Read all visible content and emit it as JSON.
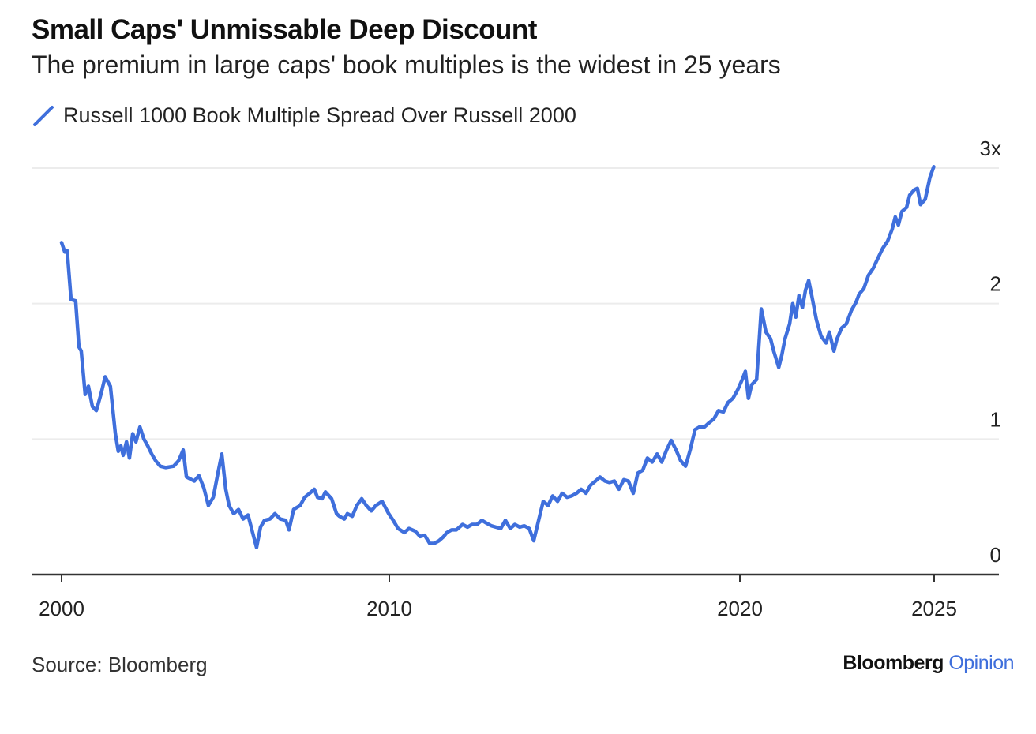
{
  "chart_data": {
    "type": "line",
    "title": "Small Caps' Unmissable Deep Discount",
    "subtitle": "The premium in large caps' book multiples is the widest in 25 years",
    "xlabel": "",
    "ylabel": "",
    "ylim": [
      0,
      3
    ],
    "yticks": [
      0,
      1,
      2,
      3
    ],
    "ytick_labels": [
      "0",
      "1",
      "2",
      "3x"
    ],
    "xticks": [
      2000,
      2010,
      2020,
      2025
    ],
    "xtick_labels": [
      "2000",
      "2010",
      "2020",
      "2025"
    ],
    "grid": true,
    "legend_position": "top-left",
    "series": [
      {
        "name": "Russell 1000 Book Multiple Spread Over Russell 2000",
        "color": "#3f6fdc",
        "x": [
          2000.0,
          2000.1,
          2000.17,
          2000.29,
          2000.43,
          2000.53,
          2000.6,
          2000.72,
          2000.82,
          2000.94,
          2001.06,
          2001.2,
          2001.33,
          2001.49,
          2001.64,
          2001.73,
          2001.81,
          2001.88,
          2001.98,
          2002.07,
          2002.17,
          2002.27,
          2002.39,
          2002.51,
          2002.63,
          2002.75,
          2002.87,
          2003.01,
          2003.18,
          2003.42,
          2003.57,
          2003.71,
          2003.81,
          2004.05,
          2004.19,
          2004.34,
          2004.48,
          2004.63,
          2004.77,
          2004.89,
          2005.01,
          2005.11,
          2005.25,
          2005.4,
          2005.54,
          2005.69,
          2005.83,
          2005.95,
          2006.07,
          2006.19,
          2006.36,
          2006.51,
          2006.67,
          2006.84,
          2006.94,
          2007.08,
          2007.28,
          2007.42,
          2007.57,
          2007.71,
          2007.81,
          2007.95,
          2008.05,
          2008.24,
          2008.39,
          2008.48,
          2008.63,
          2008.72,
          2008.87,
          2009.01,
          2009.16,
          2009.3,
          2009.45,
          2009.59,
          2009.78,
          2009.98,
          2010.11,
          2010.25,
          2010.43,
          2010.56,
          2010.74,
          2010.88,
          2011.01,
          2011.15,
          2011.28,
          2011.42,
          2011.55,
          2011.64,
          2011.78,
          2011.91,
          2012.09,
          2012.23,
          2012.36,
          2012.5,
          2012.64,
          2012.77,
          2012.91,
          2013.04,
          2013.18,
          2013.31,
          2013.45,
          2013.58,
          2013.72,
          2013.85,
          2013.99,
          2014.12,
          2014.26,
          2014.39,
          2014.53,
          2014.66,
          2014.8,
          2014.93,
          2015.07,
          2015.2,
          2015.34,
          2015.47,
          2015.61,
          2015.74,
          2015.88,
          2016.01,
          2016.15,
          2016.28,
          2016.42,
          2016.55,
          2016.69,
          2016.82,
          2016.96,
          2017.09,
          2017.23,
          2017.36,
          2017.5,
          2017.64,
          2017.77,
          2017.91,
          2018.04,
          2018.18,
          2018.31,
          2018.45,
          2018.58,
          2018.72,
          2018.85,
          2018.99,
          2019.12,
          2019.26,
          2019.39,
          2019.53,
          2019.66,
          2019.8,
          2019.93,
          2020.06,
          2020.14,
          2020.22,
          2020.3,
          2020.43,
          2020.55,
          2020.67,
          2020.79,
          2020.87,
          2021.0,
          2021.08,
          2021.16,
          2021.28,
          2021.36,
          2021.44,
          2021.52,
          2021.61,
          2021.69,
          2021.77,
          2021.85,
          2021.97,
          2022.09,
          2022.22,
          2022.3,
          2022.42,
          2022.5,
          2022.62,
          2022.74,
          2022.87,
          2022.99,
          2023.07,
          2023.19,
          2023.31,
          2023.43,
          2023.56,
          2023.68,
          2023.8,
          2023.92,
          2024.0,
          2024.08,
          2024.17,
          2024.29,
          2024.37,
          2024.49,
          2024.57,
          2024.65,
          2024.77,
          2024.89,
          2024.99
        ],
        "y": [
          2.45,
          2.38,
          2.39,
          2.03,
          2.02,
          1.68,
          1.65,
          1.33,
          1.39,
          1.24,
          1.21,
          1.33,
          1.46,
          1.39,
          1.04,
          0.91,
          0.95,
          0.88,
          0.98,
          0.86,
          1.04,
          0.98,
          1.09,
          1.0,
          0.95,
          0.89,
          0.84,
          0.8,
          0.79,
          0.8,
          0.84,
          0.92,
          0.72,
          0.69,
          0.73,
          0.64,
          0.51,
          0.57,
          0.75,
          0.89,
          0.63,
          0.51,
          0.45,
          0.48,
          0.41,
          0.44,
          0.31,
          0.2,
          0.35,
          0.4,
          0.41,
          0.45,
          0.41,
          0.4,
          0.33,
          0.48,
          0.51,
          0.57,
          0.6,
          0.63,
          0.57,
          0.56,
          0.61,
          0.56,
          0.45,
          0.43,
          0.41,
          0.45,
          0.43,
          0.51,
          0.56,
          0.51,
          0.47,
          0.51,
          0.54,
          0.45,
          0.4,
          0.34,
          0.31,
          0.34,
          0.32,
          0.28,
          0.29,
          0.23,
          0.23,
          0.25,
          0.28,
          0.31,
          0.33,
          0.33,
          0.37,
          0.35,
          0.37,
          0.37,
          0.4,
          0.38,
          0.36,
          0.35,
          0.34,
          0.4,
          0.34,
          0.37,
          0.35,
          0.36,
          0.34,
          0.25,
          0.4,
          0.54,
          0.51,
          0.58,
          0.54,
          0.6,
          0.57,
          0.58,
          0.6,
          0.63,
          0.6,
          0.66,
          0.69,
          0.72,
          0.69,
          0.68,
          0.69,
          0.63,
          0.7,
          0.69,
          0.6,
          0.75,
          0.77,
          0.86,
          0.83,
          0.89,
          0.83,
          0.92,
          0.99,
          0.92,
          0.84,
          0.8,
          0.92,
          1.07,
          1.09,
          1.09,
          1.12,
          1.15,
          1.21,
          1.2,
          1.27,
          1.3,
          1.36,
          1.44,
          1.5,
          1.3,
          1.4,
          1.44,
          1.96,
          1.79,
          1.74,
          1.65,
          1.53,
          1.62,
          1.74,
          1.85,
          2.0,
          1.9,
          2.06,
          1.97,
          2.1,
          2.17,
          2.06,
          1.88,
          1.76,
          1.71,
          1.79,
          1.65,
          1.74,
          1.82,
          1.85,
          1.95,
          2.01,
          2.07,
          2.11,
          2.21,
          2.26,
          2.34,
          2.41,
          2.46,
          2.55,
          2.64,
          2.58,
          2.68,
          2.71,
          2.8,
          2.84,
          2.85,
          2.73,
          2.77,
          2.93,
          3.01
        ]
      }
    ]
  },
  "footer": {
    "source": "Source: Bloomberg",
    "brand": "Bloomberg",
    "brand_suffix": "Opinion"
  }
}
